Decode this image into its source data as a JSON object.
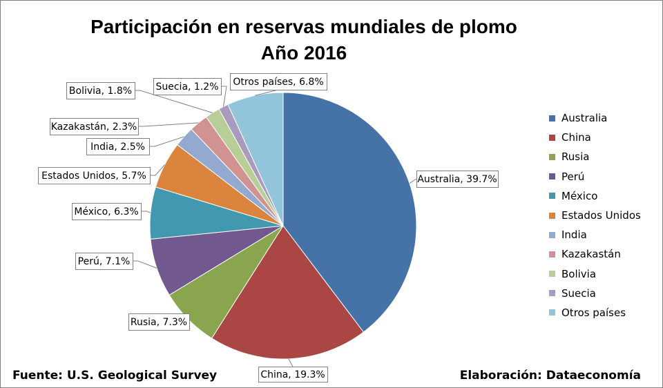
{
  "chart_data": {
    "type": "pie",
    "title_line1": "Participación en reservas mundiales de plomo",
    "title_line2": "Año 2016",
    "categories": [
      "Australia",
      "China",
      "Rusia",
      "Perú",
      "México",
      "Estados Unidos",
      "India",
      "Kazakastán",
      "Bolivia",
      "Suecia",
      "Otros países"
    ],
    "values": [
      39.7,
      19.3,
      7.3,
      7.1,
      6.3,
      5.7,
      2.5,
      2.3,
      1.8,
      1.2,
      6.8
    ],
    "data_labels": [
      "Australia, 39.7%",
      "China, 19.3%",
      "Rusia, 7.3%",
      "Perú, 7.1%",
      "México, 6.3%",
      "Estados Unidos, 5.7%",
      "India, 2.5%",
      "Kazakastán, 2.3%",
      "Bolivia, 1.8%",
      "Suecia, 1.2%",
      "Otros países, 6.8%"
    ],
    "colors": [
      "#4572A7",
      "#AA4643",
      "#89A54E",
      "#71588F",
      "#4198AF",
      "#DB843D",
      "#93A9CF",
      "#D19392",
      "#B9CD96",
      "#A99BBD",
      "#92C5D9"
    ],
    "legend_position": "right"
  },
  "footer": {
    "source": "Fuente: U.S. Geological Survey",
    "credit": "Elaboración: Dataeconomía"
  }
}
